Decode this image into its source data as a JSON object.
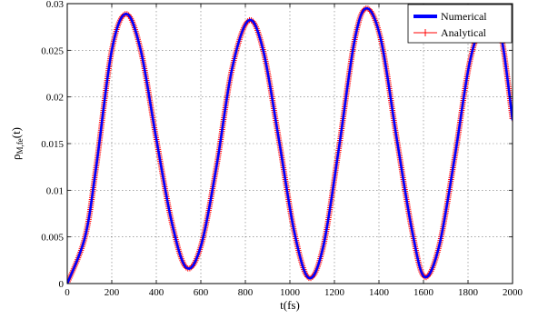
{
  "chart_data": {
    "type": "line",
    "xlabel": "t(fs)",
    "ylabel_main": "ρ",
    "ylabel_sub": "M,fe",
    "ylabel_tail": "(t)",
    "xlim": [
      0,
      2000
    ],
    "ylim": [
      0,
      0.03
    ],
    "xticks": [
      "0",
      "200",
      "400",
      "600",
      "800",
      "1000",
      "1200",
      "1400",
      "1600",
      "1800",
      "2000"
    ],
    "yticks": [
      "0",
      "0.005",
      "0.01",
      "0.015",
      "0.02",
      "0.025",
      "0.03"
    ],
    "grid": true,
    "legend_position": "top-right",
    "series": [
      {
        "name": "Numerical",
        "color": "#0000ff",
        "style": "solid-thick",
        "x": [
          0,
          80,
          130,
          200,
          265,
          330,
          400,
          470,
          535,
          600,
          670,
          740,
          815,
          880,
          950,
          1020,
          1085,
          1150,
          1220,
          1290,
          1345,
          1410,
          1480,
          1550,
          1605,
          1670,
          1740,
          1810,
          1880,
          1930,
          1960,
          2000
        ],
        "y": [
          0.0,
          0.005,
          0.0125,
          0.025,
          0.0289,
          0.025,
          0.0155,
          0.0065,
          0.0017,
          0.004,
          0.0125,
          0.023,
          0.0282,
          0.025,
          0.0155,
          0.0055,
          0.0006,
          0.004,
          0.0145,
          0.026,
          0.0295,
          0.026,
          0.0155,
          0.0055,
          0.0007,
          0.004,
          0.0135,
          0.024,
          0.0285,
          0.028,
          0.025,
          0.0175
        ]
      },
      {
        "name": "Analytical",
        "color": "#ff0000",
        "style": "line-plus-markers",
        "x": [
          0,
          80,
          130,
          200,
          265,
          330,
          400,
          470,
          535,
          600,
          670,
          740,
          815,
          880,
          950,
          1020,
          1085,
          1150,
          1220,
          1290,
          1345,
          1410,
          1480,
          1550,
          1605,
          1670,
          1740,
          1810,
          1880,
          1930,
          1960,
          2000
        ],
        "y": [
          0.0,
          0.005,
          0.0125,
          0.025,
          0.0289,
          0.025,
          0.0155,
          0.0065,
          0.0017,
          0.004,
          0.0125,
          0.023,
          0.0282,
          0.025,
          0.0155,
          0.0055,
          0.0006,
          0.004,
          0.0145,
          0.026,
          0.0295,
          0.026,
          0.0155,
          0.0055,
          0.0007,
          0.004,
          0.0135,
          0.024,
          0.0285,
          0.028,
          0.025,
          0.0175
        ]
      }
    ]
  }
}
